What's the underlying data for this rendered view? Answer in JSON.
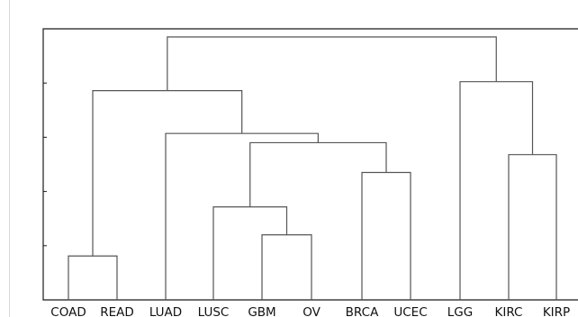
{
  "dendrogram": {
    "leaves": [
      "COAD",
      "READ",
      "LUAD",
      "LUSC",
      "GBM",
      "OV",
      "BRCA",
      "UCEC",
      "LGG",
      "KIRC",
      "KIRP"
    ],
    "merges": [
      {
        "id": "n1",
        "left": "COAD",
        "right": "READ",
        "height": 0.162
      },
      {
        "id": "n2",
        "left": "GBM",
        "right": "OV",
        "height": 0.24
      },
      {
        "id": "n3",
        "left": "LUSC",
        "right": "n2",
        "height": 0.343
      },
      {
        "id": "n4",
        "left": "KIRC",
        "right": "KIRP",
        "height": 0.536
      },
      {
        "id": "n5",
        "left": "BRCA",
        "right": "UCEC",
        "height": 0.47
      },
      {
        "id": "n6",
        "left": "n3",
        "right": "n5",
        "height": 0.58
      },
      {
        "id": "n7",
        "left": "LUAD",
        "right": "n6",
        "height": 0.614
      },
      {
        "id": "n8",
        "left": "LGG",
        "right": "n4",
        "height": 0.805
      },
      {
        "id": "n9",
        "left": "n1",
        "right": "n7",
        "height": 0.772
      },
      {
        "id": "n10",
        "left": "n9",
        "right": "n8",
        "height": 0.97
      }
    ],
    "height_max": 1.0,
    "y_ticks": [
      0.2,
      0.4,
      0.6,
      0.8
    ]
  }
}
